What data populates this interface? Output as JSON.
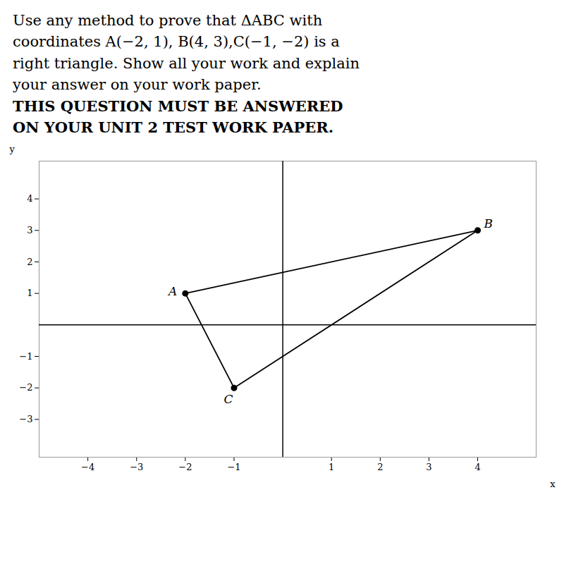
{
  "chart_data": {
    "type": "polygon",
    "title": [
      "Use any method to prove that ΔABC with",
      "coordinates A(−2, 1),  B(4, 3),C(−1, −2) is a",
      "right triangle.  Show all your work and explain",
      "your answer on your work paper."
    ],
    "subtitle": [
      "THIS QUESTION MUST BE ANSWERED",
      "ON YOUR UNIT 2 TEST WORK PAPER."
    ],
    "x": [
      -2,
      4,
      -1
    ],
    "values": [
      1,
      3,
      -2
    ],
    "labels": [
      "A",
      "B",
      "C"
    ],
    "color": "#000000",
    "marker": "circle",
    "xlabel": "x",
    "ylabel": "y",
    "xlim": [
      -5.0,
      5.2
    ],
    "ylim": [
      -4.2,
      5.2
    ],
    "xticks": [
      -4,
      -3,
      -2,
      -1,
      1,
      2,
      3,
      4
    ],
    "yticks": [
      -3,
      -2,
      -1,
      1,
      2,
      3,
      4
    ],
    "grid": false
  }
}
